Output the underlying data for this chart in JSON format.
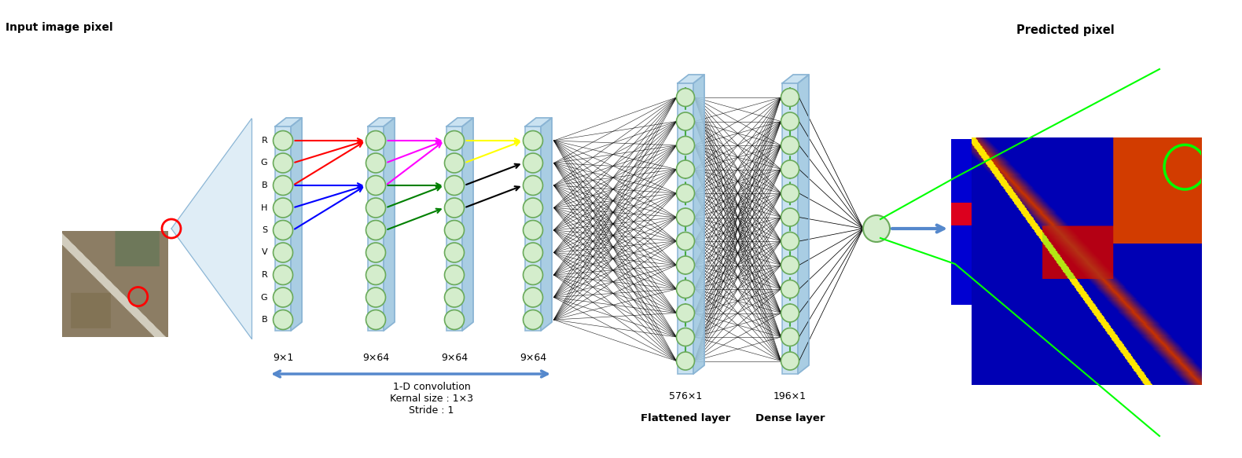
{
  "bg_color": "#ffffff",
  "layer_box_color": "#c5dff0",
  "layer_box_edge_color": "#8ab4d4",
  "layer_box_side_color": "#a0c8e0",
  "neuron_face_color": "#d4edcc",
  "neuron_edge_color": "#6aaa5a",
  "input_label": "Input image pixel",
  "output_label": "Predicted pixel",
  "layer_labels": [
    "9×1",
    "9×64",
    "9×64",
    "9×64",
    "576×1",
    "196×1"
  ],
  "layer_sublabels": [
    "",
    "",
    "",
    "",
    "Flattened layer",
    "Dense layer"
  ],
  "conv_annotation": "1-D convolution\nKernal size : 1×3\nStride : 1",
  "dashed_line_color": "#44aa44",
  "arrow_blue": "#5588cc"
}
